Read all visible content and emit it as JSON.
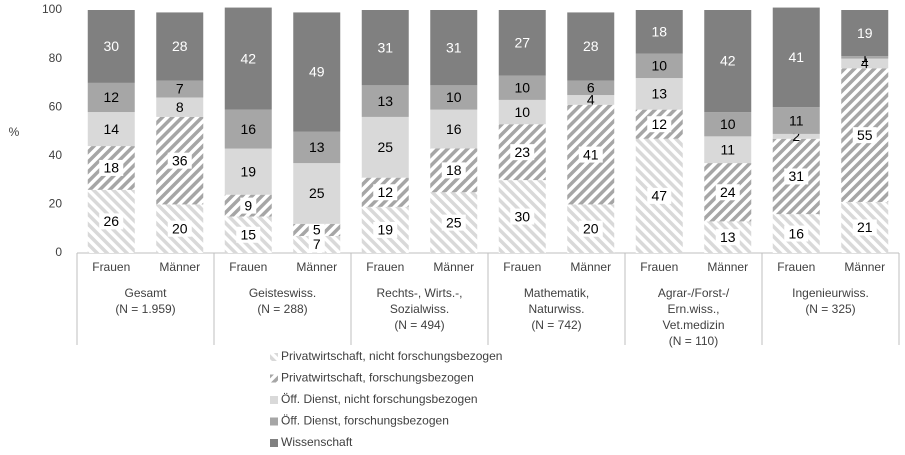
{
  "chart_data": {
    "type": "stacked_bar",
    "y_label": "%",
    "categories": [
      "Frauen",
      "Männer",
      "Frauen",
      "Männer",
      "Frauen",
      "Männer",
      "Frauen",
      "Männer",
      "Frauen",
      "Männer",
      "Frauen",
      "Männer"
    ],
    "groups": [
      {
        "lines": [
          "Gesamt",
          "(N = 1.959)"
        ],
        "size": 2
      },
      {
        "lines": [
          "Geisteswiss.",
          "(N = 288)"
        ],
        "size": 2
      },
      {
        "lines": [
          "Rechts-, Wirts.-,",
          "Sozialwiss.",
          "(N = 494)"
        ],
        "size": 2
      },
      {
        "lines": [
          "Mathematik,",
          "Naturwiss.",
          "(N = 742)"
        ],
        "size": 2
      },
      {
        "lines": [
          "Agrar-/Forst-/",
          "Ern.wiss.,",
          "Vet.medizin",
          "(N = 110)"
        ],
        "size": 2
      },
      {
        "lines": [
          "Ingenieurwiss.",
          "(N = 325)"
        ],
        "size": 2
      }
    ],
    "series": [
      {
        "name": "Privatwirtschaft, nicht forschungsbezogen",
        "color": "#d9d9d9",
        "hatch": true,
        "values": [
          26,
          20,
          15,
          7,
          19,
          25,
          30,
          20,
          47,
          13,
          16,
          21
        ]
      },
      {
        "name": "Privatwirtschaft, forschungsbezogen",
        "color": "#a6a6a6",
        "hatch": true,
        "values": [
          18,
          36,
          9,
          5,
          12,
          18,
          23,
          41,
          12,
          24,
          31,
          55
        ]
      },
      {
        "name": "Öff. Dienst, nicht forschungsbezogen",
        "color": "#d9d9d9",
        "hatch": false,
        "values": [
          14,
          8,
          19,
          25,
          25,
          16,
          10,
          4,
          13,
          11,
          2,
          4
        ]
      },
      {
        "name": "Öff. Dienst, forschungsbezogen",
        "color": "#a6a6a6",
        "hatch": false,
        "values": [
          12,
          7,
          16,
          13,
          13,
          10,
          10,
          6,
          10,
          10,
          11,
          1
        ]
      },
      {
        "name": "Wissenschaft",
        "color": "#808080",
        "hatch": false,
        "values": [
          30,
          28,
          42,
          49,
          31,
          31,
          27,
          28,
          18,
          42,
          41,
          19
        ]
      }
    ],
    "ylim": [
      0,
      100
    ],
    "yticks": [
      0,
      20,
      40,
      60,
      80,
      100
    ],
    "grid": false,
    "legend": "bottom"
  }
}
